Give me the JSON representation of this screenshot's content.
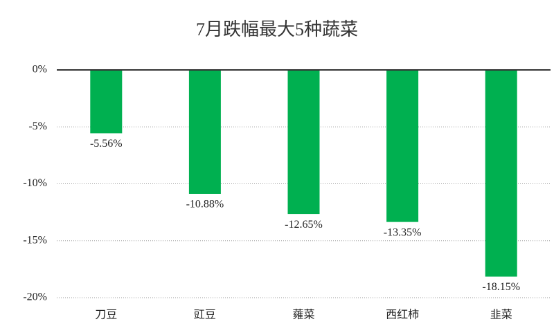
{
  "chart_data": {
    "type": "bar",
    "title": "7月跌幅最大5种蔬菜",
    "categories": [
      "刀豆",
      "豇豆",
      "蕹菜",
      "西红柿",
      "韭菜"
    ],
    "values": [
      -5.56,
      -10.88,
      -12.65,
      -13.35,
      -18.15
    ],
    "value_labels": [
      "-5.56%",
      "-10.88%",
      "-12.65%",
      "-13.35%",
      "-18.15%"
    ],
    "color": "#00b050",
    "ylim": [
      -20,
      0
    ],
    "yticks": [
      {
        "value": 0,
        "label": "0%"
      },
      {
        "value": -5,
        "label": "-5%"
      },
      {
        "value": -10,
        "label": "-10%"
      },
      {
        "value": -15,
        "label": "-15%"
      },
      {
        "value": -20,
        "label": "-20%"
      }
    ],
    "grid": true
  }
}
